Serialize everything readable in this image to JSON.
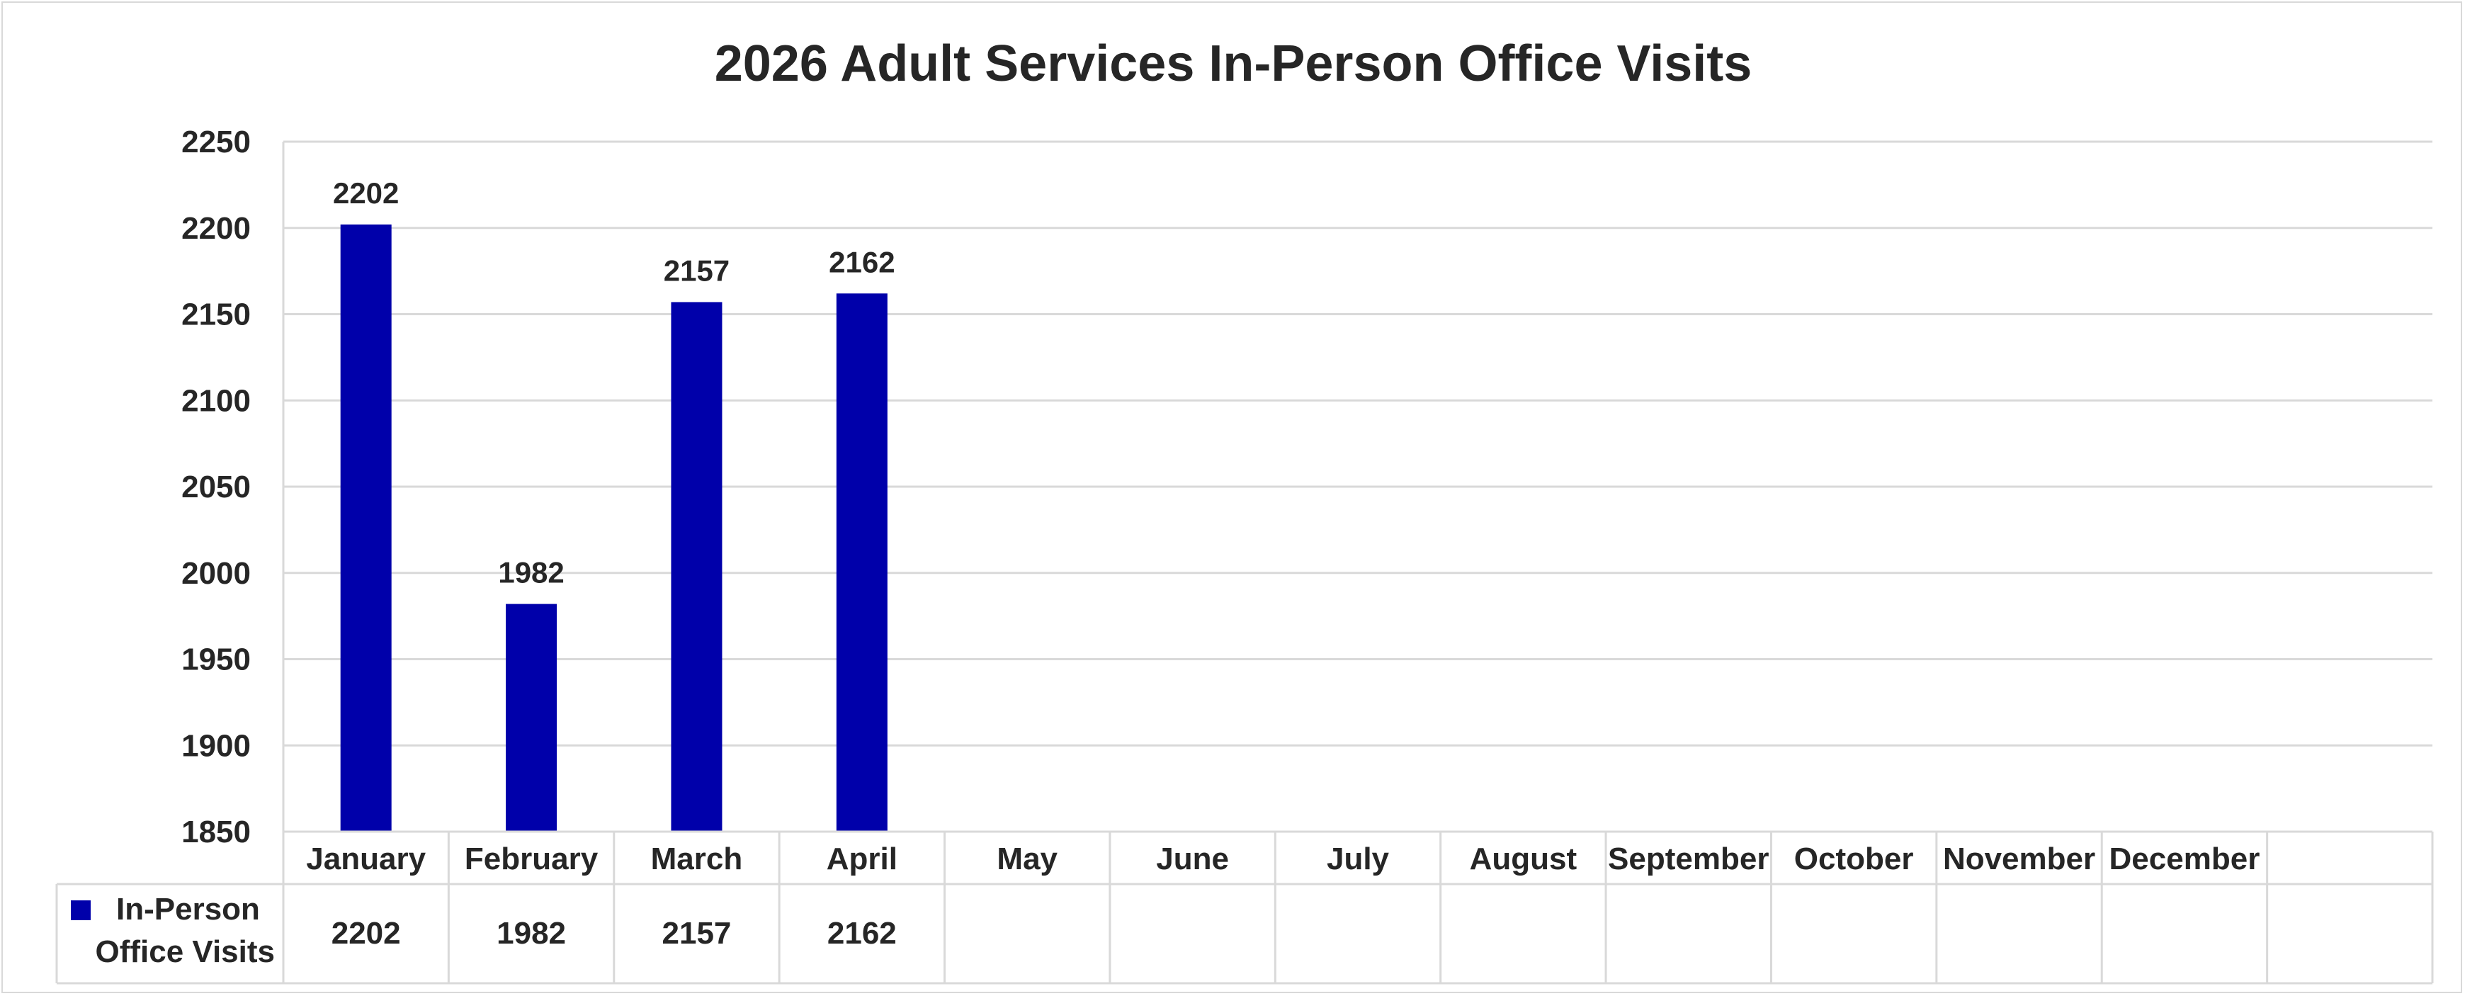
{
  "chart_data": {
    "type": "bar",
    "title": "2026 Adult Services In-Person Office Visits",
    "categories": [
      "January",
      "February",
      "March",
      "April",
      "May",
      "June",
      "July",
      "August",
      "September",
      "October",
      "November",
      "December"
    ],
    "series": [
      {
        "name": "In-Person Office Visits",
        "legend_lines": [
          "In-Person",
          "Office Visits"
        ],
        "color": "#0000AA",
        "values": [
          2202,
          1982,
          2157,
          2162,
          null,
          null,
          null,
          null,
          null,
          null,
          null,
          null
        ]
      }
    ],
    "yticks": [
      1850,
      1900,
      1950,
      2000,
      2050,
      2100,
      2150,
      2200,
      2250
    ],
    "ylim": [
      1850,
      2250
    ],
    "grid": true,
    "data_table": true,
    "legend_position": "data-table-left"
  }
}
